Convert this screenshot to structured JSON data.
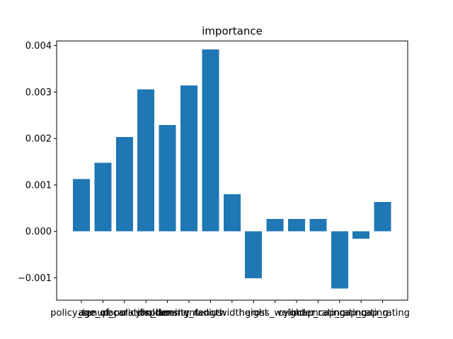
{
  "chart_data": {
    "type": "bar",
    "title": "importance",
    "xlabel": "",
    "ylabel": "",
    "categories": [
      "policy_tenure",
      "age_of_car",
      "age_of_policyholder",
      "population_density",
      "displacement",
      "turning_radius",
      "length",
      "width",
      "height",
      "gross_weight",
      "cylinder",
      "ncap_rating",
      "ncap_rating",
      "ncap_rating",
      "ncap_rating"
    ],
    "values": [
      0.00113,
      0.00148,
      0.00203,
      0.00306,
      0.00229,
      0.00314,
      0.00392,
      0.0008,
      -0.00101,
      0.00027,
      0.00027,
      0.00027,
      -0.00123,
      -0.00016,
      0.00063
    ],
    "ylim": [
      -0.00148,
      0.0041
    ],
    "yticks": [
      -0.001,
      0.0,
      0.001,
      0.002,
      0.003,
      0.004
    ],
    "ytick_labels": [
      "−0.001",
      "0.000",
      "0.001",
      "0.002",
      "0.003",
      "0.004"
    ],
    "bar_color": "#1f77b4",
    "grid": false,
    "legend": "none"
  }
}
